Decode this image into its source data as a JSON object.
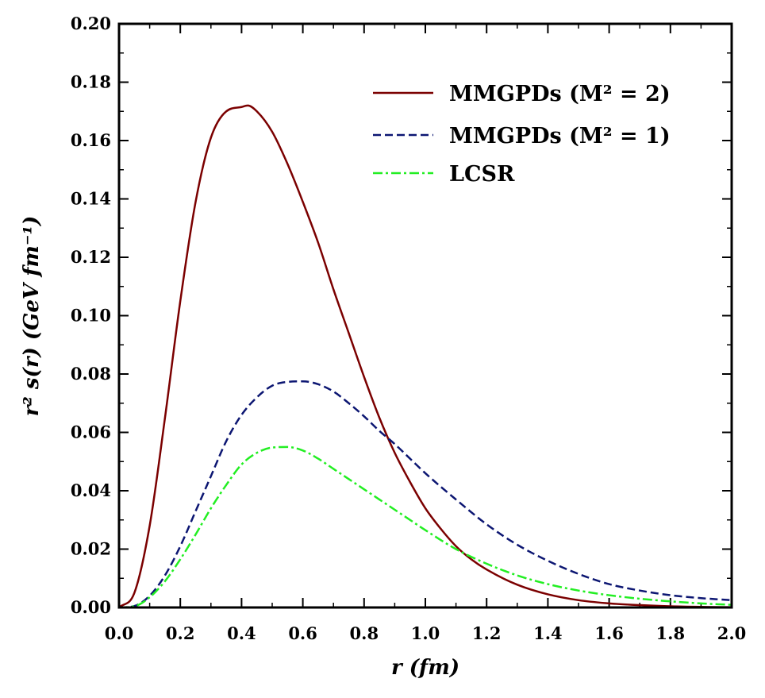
{
  "chart_data": {
    "type": "line",
    "xlabel": "r (fm)",
    "ylabel": "r² s(r) (GeV fm⁻¹)",
    "xlim": [
      0.0,
      2.0
    ],
    "ylim": [
      0.0,
      0.2
    ],
    "x_ticks": [
      "0.0",
      "0.2",
      "0.4",
      "0.6",
      "0.8",
      "1.0",
      "1.2",
      "1.4",
      "1.6",
      "1.8",
      "2.0"
    ],
    "y_ticks": [
      "0.00",
      "0.02",
      "0.04",
      "0.06",
      "0.08",
      "0.10",
      "0.12",
      "0.14",
      "0.16",
      "0.18",
      "0.20"
    ],
    "grid": false,
    "legend_position": "top-right",
    "series": [
      {
        "name": "MMGPDs (M² = 2)",
        "color": "#7b0000",
        "style": "solid",
        "x": [
          0.0,
          0.05,
          0.1,
          0.15,
          0.2,
          0.25,
          0.3,
          0.35,
          0.4,
          0.42,
          0.45,
          0.5,
          0.55,
          0.6,
          0.65,
          0.7,
          0.75,
          0.8,
          0.85,
          0.9,
          0.95,
          1.0,
          1.05,
          1.1,
          1.15,
          1.2,
          1.3,
          1.4,
          1.5,
          1.6,
          1.7,
          1.8,
          1.9,
          2.0
        ],
        "y": [
          0.0,
          0.005,
          0.028,
          0.065,
          0.105,
          0.139,
          0.161,
          0.17,
          0.1715,
          0.172,
          0.17,
          0.163,
          0.152,
          0.139,
          0.125,
          0.109,
          0.094,
          0.079,
          0.065,
          0.053,
          0.043,
          0.034,
          0.027,
          0.021,
          0.0165,
          0.013,
          0.0078,
          0.0045,
          0.0025,
          0.0014,
          0.0008,
          0.0004,
          0.0002,
          0.0001
        ]
      },
      {
        "name": "MMGPDs (M² = 1)",
        "color": "#0c1672",
        "style": "dashed",
        "x": [
          0.0,
          0.05,
          0.1,
          0.15,
          0.2,
          0.25,
          0.3,
          0.35,
          0.4,
          0.45,
          0.5,
          0.55,
          0.6,
          0.65,
          0.7,
          0.75,
          0.8,
          0.85,
          0.9,
          0.95,
          1.0,
          1.1,
          1.2,
          1.3,
          1.4,
          1.5,
          1.6,
          1.7,
          1.8,
          1.9,
          2.0
        ],
        "y": [
          0.0,
          0.0005,
          0.004,
          0.011,
          0.021,
          0.033,
          0.045,
          0.057,
          0.066,
          0.072,
          0.076,
          0.0773,
          0.0775,
          0.0765,
          0.074,
          0.07,
          0.0655,
          0.0605,
          0.056,
          0.051,
          0.046,
          0.037,
          0.0285,
          0.0215,
          0.016,
          0.0115,
          0.008,
          0.0058,
          0.0042,
          0.0032,
          0.0025
        ]
      },
      {
        "name": "LCSR",
        "color": "#22ee22",
        "style": "dashdot",
        "x": [
          0.0,
          0.05,
          0.1,
          0.15,
          0.2,
          0.25,
          0.3,
          0.35,
          0.4,
          0.45,
          0.5,
          0.55,
          0.6,
          0.65,
          0.7,
          0.75,
          0.8,
          0.85,
          0.9,
          0.95,
          1.0,
          1.1,
          1.2,
          1.3,
          1.4,
          1.5,
          1.6,
          1.7,
          1.8,
          1.9,
          2.0
        ],
        "y": [
          0.0,
          0.0004,
          0.0035,
          0.009,
          0.0165,
          0.025,
          0.034,
          0.042,
          0.049,
          0.053,
          0.0548,
          0.055,
          0.0538,
          0.051,
          0.0475,
          0.044,
          0.0405,
          0.037,
          0.0335,
          0.03,
          0.0265,
          0.02,
          0.015,
          0.011,
          0.008,
          0.0058,
          0.0042,
          0.003,
          0.0021,
          0.0014,
          0.0009
        ]
      }
    ]
  },
  "legend": {
    "entries": [
      {
        "label": "MMGPDs (M² = 2)",
        "color": "#7b0000",
        "style": "solid"
      },
      {
        "label": "MMGPDs (M² = 1)",
        "color": "#0c1672",
        "style": "dashed"
      },
      {
        "label": "LCSR",
        "color": "#22ee22",
        "style": "dashdot"
      }
    ]
  }
}
